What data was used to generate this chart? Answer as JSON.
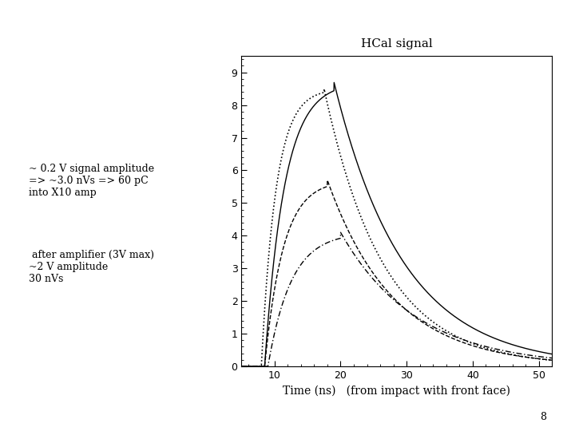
{
  "title": "HCal signal",
  "xlabel": "Time (ns)   (from impact with front face)",
  "xlim": [
    5,
    52
  ],
  "ylim": [
    0,
    9.5
  ],
  "xticks": [
    10,
    20,
    30,
    40,
    50
  ],
  "yticks": [
    0,
    1,
    2,
    3,
    4,
    5,
    6,
    7,
    8,
    9
  ],
  "annotation1": "~ 0.2 V signal amplitude\n=> ~3.0 nVs => 60 pC\ninto X10 amp",
  "annotation2": " after amplifier (3V max)\n~2 V amplitude\n30 nVs",
  "page_number": "8",
  "curve1_peak": 8.7,
  "curve1_peak_x": 19.0,
  "curve2_peak": 8.5,
  "curve2_peak_x": 17.5,
  "curve3_peak": 5.7,
  "curve3_peak_x": 18.0,
  "curve4_peak": 4.1,
  "curve4_peak_x": 20.0,
  "bg_color": "#ffffff",
  "line_color": "#000000",
  "fig_width": 7.2,
  "fig_height": 5.4,
  "dpi": 100
}
